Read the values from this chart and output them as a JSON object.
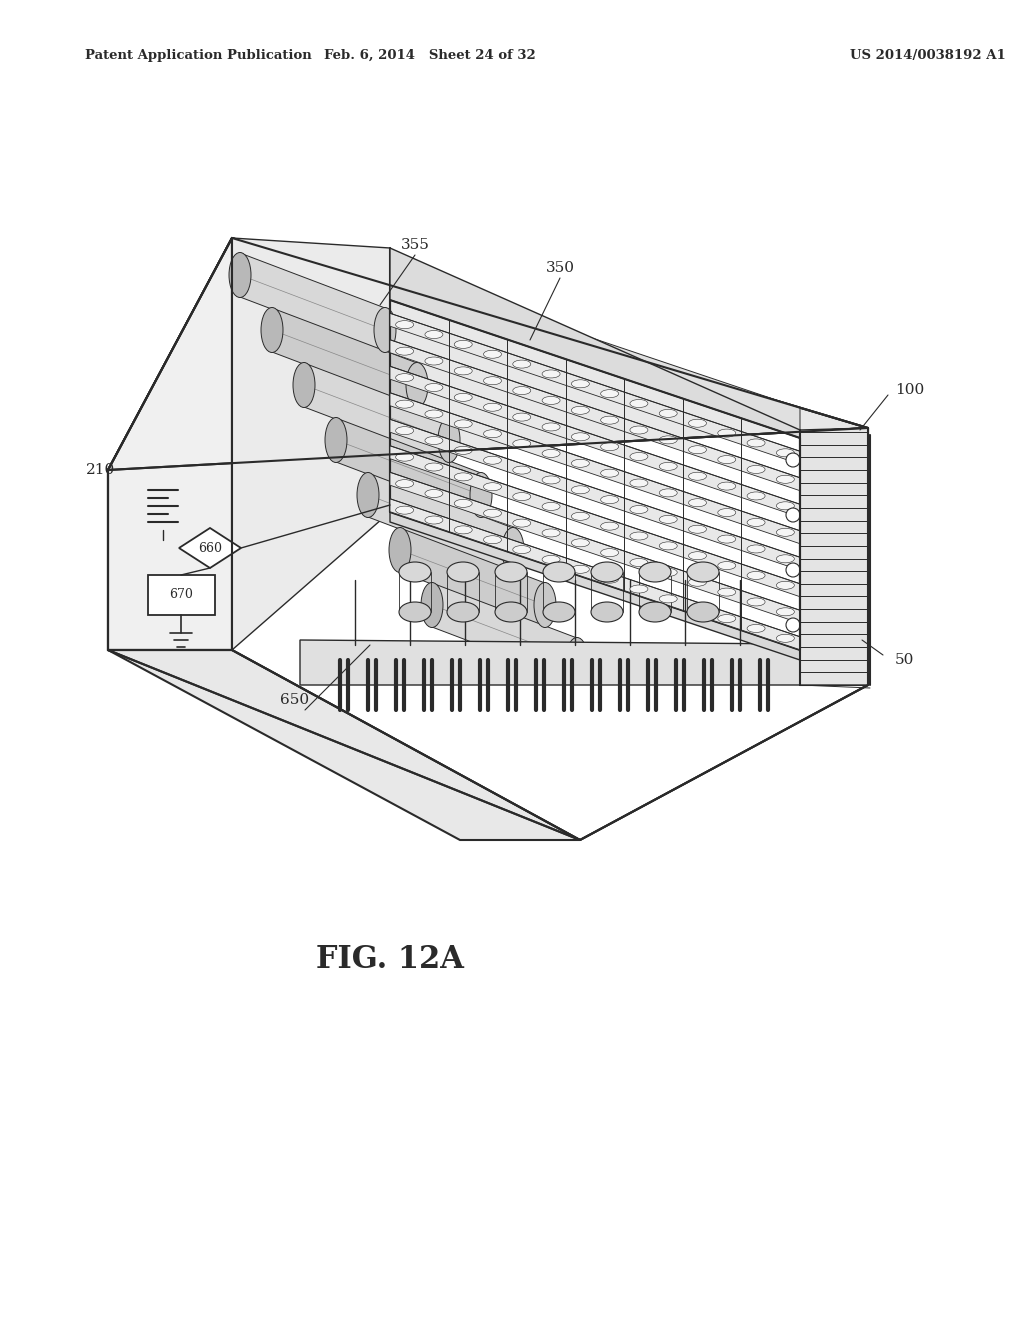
{
  "title_left": "Patent Application Publication",
  "title_center": "Feb. 6, 2014   Sheet 24 of 32",
  "title_right": "US 2014/0038192 A1",
  "fig_label": "FIG. 12A",
  "bg_color": "#ffffff",
  "line_color": "#2a2a2a",
  "header_fontsize": 9.5,
  "fig_label_fontsize": 22,
  "label_fontsize": 11
}
